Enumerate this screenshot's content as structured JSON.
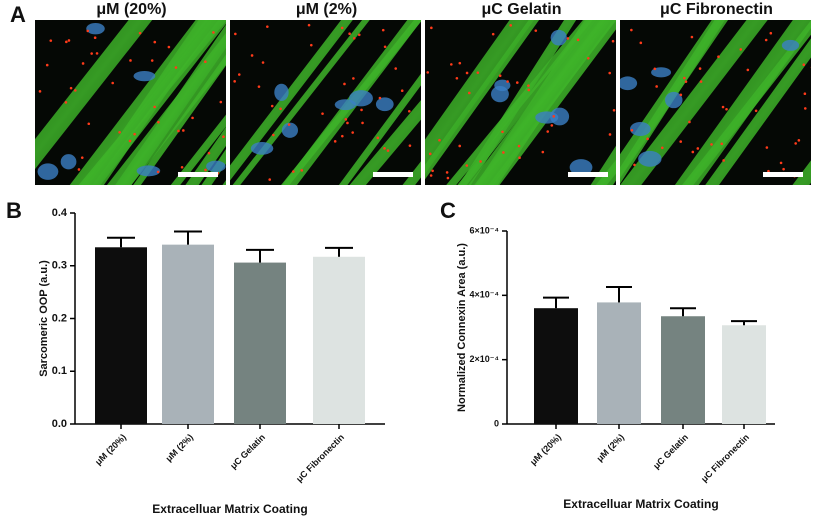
{
  "panels": {
    "a": "A",
    "b": "B",
    "c": "C"
  },
  "images": [
    "μM (20%)",
    "μM (2%)",
    "μC Gelatin",
    "μC Fibronectin"
  ],
  "chart_data": [
    {
      "type": "bar",
      "ylabel": "Sarcomeric OOP (a.u.)",
      "xlabel": "Extracelluar Matrix Coating",
      "categories": [
        "μM (20%)",
        "μM (2%)",
        "μC Gelatin",
        "μC Fibronectin"
      ],
      "values": [
        0.335,
        0.34,
        0.306,
        0.317
      ],
      "errors": [
        0.018,
        0.025,
        0.024,
        0.017
      ],
      "colors": [
        "#0d0d0d",
        "#a9b2b8",
        "#758380",
        "#dde3e1"
      ],
      "ylim": [
        0,
        0.4
      ],
      "yticks": [
        {
          "value": 0,
          "label": "0.0"
        },
        0.1,
        0.2,
        0.3,
        0.4
      ]
    },
    {
      "type": "bar",
      "ylabel": "Normalized Connexin Area (a.u.)",
      "xlabel": "Extracelluar Matrix Coating",
      "categories": [
        "μM (20%)",
        "μM (2%)",
        "μC Gelatin",
        "μC Fibronectin"
      ],
      "values": [
        0.00036,
        0.000378,
        0.000335,
        0.000307
      ],
      "errors": [
        3.3e-05,
        4.8e-05,
        2.5e-05,
        1.3e-05
      ],
      "colors": [
        "#0d0d0d",
        "#a9b2b8",
        "#758380",
        "#dde3e1"
      ],
      "ylim": [
        0,
        0.0006
      ],
      "yticks": [
        {
          "value": 0,
          "label": "0"
        },
        {
          "value": 0.0002,
          "label": "2×10⁻⁴"
        },
        {
          "value": 0.0004,
          "label": "4×10⁻⁴"
        },
        {
          "value": 0.0006,
          "label": "6×10⁻⁴"
        }
      ]
    }
  ]
}
